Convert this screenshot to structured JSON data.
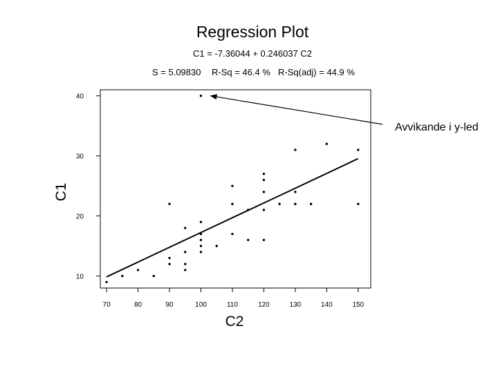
{
  "chart_data": {
    "type": "scatter",
    "title": "Regression Plot",
    "equation": "C1 = -7.36044 + 0.246037 C2",
    "stats": {
      "s": "S = 5.09830",
      "rsq": "R-Sq = 46.4 %",
      "rsq_adj": "R-Sq(adj) = 44.9 %"
    },
    "xlabel": "C2",
    "ylabel": "C1",
    "xlim": [
      68,
      154
    ],
    "ylim": [
      8,
      41
    ],
    "xticks": [
      70,
      80,
      90,
      100,
      110,
      120,
      130,
      140,
      150
    ],
    "yticks": [
      10,
      20,
      30,
      40
    ],
    "grid": false,
    "points": [
      {
        "x": 70,
        "y": 9
      },
      {
        "x": 75,
        "y": 10
      },
      {
        "x": 80,
        "y": 11
      },
      {
        "x": 85,
        "y": 10
      },
      {
        "x": 90,
        "y": 12
      },
      {
        "x": 90,
        "y": 13
      },
      {
        "x": 90,
        "y": 22
      },
      {
        "x": 95,
        "y": 11
      },
      {
        "x": 95,
        "y": 12
      },
      {
        "x": 95,
        "y": 14
      },
      {
        "x": 95,
        "y": 18
      },
      {
        "x": 100,
        "y": 14
      },
      {
        "x": 100,
        "y": 15
      },
      {
        "x": 100,
        "y": 16
      },
      {
        "x": 100,
        "y": 17
      },
      {
        "x": 100,
        "y": 19
      },
      {
        "x": 100,
        "y": 40
      },
      {
        "x": 105,
        "y": 15
      },
      {
        "x": 110,
        "y": 17
      },
      {
        "x": 110,
        "y": 22
      },
      {
        "x": 110,
        "y": 25
      },
      {
        "x": 115,
        "y": 16
      },
      {
        "x": 115,
        "y": 21
      },
      {
        "x": 120,
        "y": 16
      },
      {
        "x": 120,
        "y": 21
      },
      {
        "x": 120,
        "y": 24
      },
      {
        "x": 120,
        "y": 26
      },
      {
        "x": 120,
        "y": 27
      },
      {
        "x": 125,
        "y": 22
      },
      {
        "x": 130,
        "y": 22
      },
      {
        "x": 130,
        "y": 24
      },
      {
        "x": 130,
        "y": 31
      },
      {
        "x": 135,
        "y": 22
      },
      {
        "x": 140,
        "y": 32
      },
      {
        "x": 150,
        "y": 22
      },
      {
        "x": 150,
        "y": 31
      }
    ],
    "fit_line": [
      {
        "x": 70,
        "y": 9.86
      },
      {
        "x": 80,
        "y": 12.32
      },
      {
        "x": 90,
        "y": 14.78
      },
      {
        "x": 100,
        "y": 17.24
      },
      {
        "x": 110,
        "y": 19.7
      },
      {
        "x": 120,
        "y": 22.16
      },
      {
        "x": 130,
        "y": 24.62
      },
      {
        "x": 140,
        "y": 27.08
      },
      {
        "x": 150,
        "y": 29.55
      }
    ],
    "annotation": {
      "text": "Avvikande i y-led",
      "target": {
        "x": 100,
        "y": 40
      }
    }
  }
}
